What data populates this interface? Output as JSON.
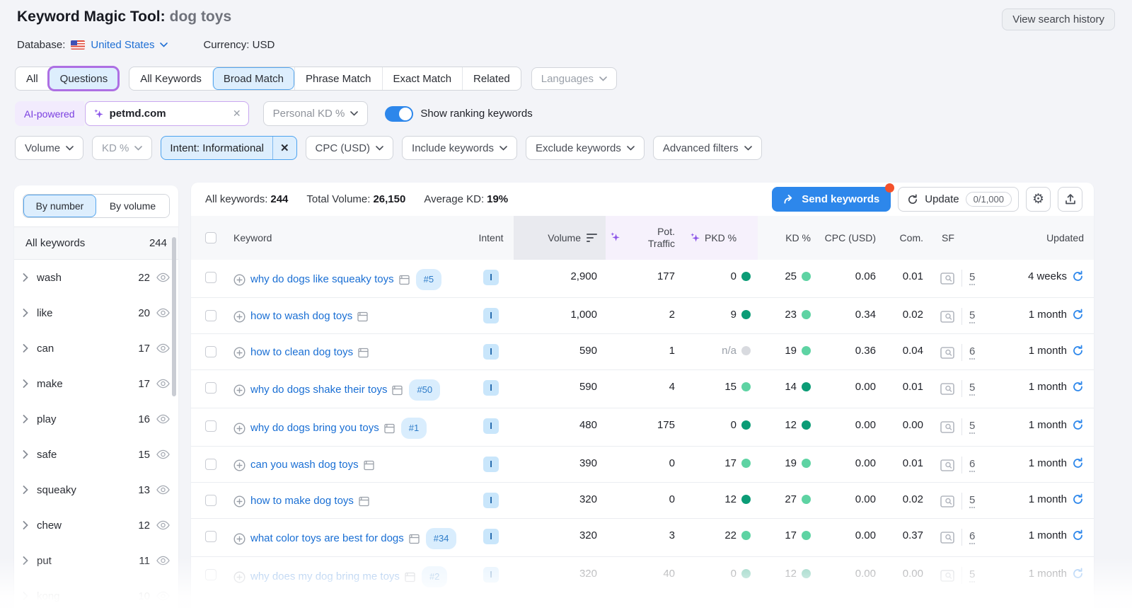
{
  "header": {
    "title": "Keyword Magic Tool:",
    "query": "dog toys",
    "view_search_history": "View search history",
    "database_label": "Database:",
    "database_value": "United States",
    "currency_label": "Currency:",
    "currency_value": "USD"
  },
  "icons": {
    "gear": "⚙",
    "clear": "✕",
    "chip_close": "✕"
  },
  "tabs": {
    "all": "All",
    "questions": "Questions",
    "match_tabs": [
      "All Keywords",
      "Broad Match",
      "Phrase Match",
      "Exact Match",
      "Related"
    ],
    "active_match_tab": "Broad Match",
    "languages": "Languages"
  },
  "search_row": {
    "ai_label": "AI-powered",
    "input_value": "petmd.com",
    "personal_kd_label": "Personal KD %",
    "show_ranking_label": "Show ranking keywords",
    "toggle_on": true
  },
  "filter_row": {
    "volume": "Volume",
    "kd": "KD %",
    "intent_chip": "Intent: Informational",
    "cpc": "CPC (USD)",
    "include": "Include keywords",
    "exclude": "Exclude keywords",
    "advanced": "Advanced filters"
  },
  "sidebar": {
    "by_number": "By number",
    "by_volume": "By volume",
    "all_keywords_label": "All keywords",
    "all_keywords_count": "244",
    "groups": [
      {
        "word": "wash",
        "count": "22"
      },
      {
        "word": "like",
        "count": "20"
      },
      {
        "word": "can",
        "count": "17"
      },
      {
        "word": "make",
        "count": "17"
      },
      {
        "word": "play",
        "count": "16"
      },
      {
        "word": "safe",
        "count": "15"
      },
      {
        "word": "squeaky",
        "count": "13"
      },
      {
        "word": "chew",
        "count": "12"
      },
      {
        "word": "put",
        "count": "11"
      },
      {
        "word": "kong",
        "count": "10",
        "faded": true
      }
    ]
  },
  "toolbar": {
    "stats": [
      {
        "label": "All keywords:",
        "value": "244"
      },
      {
        "label": "Total Volume:",
        "value": "26,150"
      },
      {
        "label": "Average KD:",
        "value": "19%"
      }
    ],
    "send_keywords": "Send keywords",
    "update": "Update",
    "update_quota": "0/1,000"
  },
  "table": {
    "columns": {
      "keyword": "Keyword",
      "intent": "Intent",
      "volume": "Volume",
      "pot_traffic_line1": "Pot.",
      "pot_traffic_line2": "Traffic",
      "pkd": "PKD %",
      "kd": "KD %",
      "cpc": "CPC (USD)",
      "com": "Com.",
      "sf": "SF",
      "updated": "Updated"
    },
    "rows": [
      {
        "keyword": "why do dogs like squeaky toys",
        "rank": "#5",
        "intent": "I",
        "volume": "2,900",
        "pot_traffic": "177",
        "pkd": "0",
        "pkd_level": "dark",
        "kd": "25",
        "kd_level": "light",
        "cpc": "0.06",
        "com": "0.01",
        "sf": "5",
        "updated": "4 weeks",
        "faded": false
      },
      {
        "keyword": "how to wash dog toys",
        "rank": "",
        "intent": "I",
        "volume": "1,000",
        "pot_traffic": "2",
        "pkd": "9",
        "pkd_level": "dark",
        "kd": "23",
        "kd_level": "light",
        "cpc": "0.34",
        "com": "0.02",
        "sf": "5",
        "updated": "1 month",
        "faded": false
      },
      {
        "keyword": "how to clean dog toys",
        "rank": "",
        "intent": "I",
        "volume": "590",
        "pot_traffic": "1",
        "pkd": "n/a",
        "pkd_level": "na",
        "kd": "19",
        "kd_level": "light",
        "cpc": "0.36",
        "com": "0.04",
        "sf": "6",
        "updated": "1 month",
        "faded": false
      },
      {
        "keyword": "why do dogs shake their toys",
        "rank": "#50",
        "intent": "I",
        "volume": "590",
        "pot_traffic": "4",
        "pkd": "15",
        "pkd_level": "light",
        "kd": "14",
        "kd_level": "dark",
        "cpc": "0.00",
        "com": "0.01",
        "sf": "5",
        "updated": "1 month",
        "faded": false
      },
      {
        "keyword": "why do dogs bring you toys",
        "rank": "#1",
        "intent": "I",
        "volume": "480",
        "pot_traffic": "175",
        "pkd": "0",
        "pkd_level": "dark",
        "kd": "12",
        "kd_level": "dark",
        "cpc": "0.00",
        "com": "0.00",
        "sf": "5",
        "updated": "1 month",
        "faded": false
      },
      {
        "keyword": "can you wash dog toys",
        "rank": "",
        "intent": "I",
        "volume": "390",
        "pot_traffic": "0",
        "pkd": "17",
        "pkd_level": "light",
        "kd": "19",
        "kd_level": "light",
        "cpc": "0.00",
        "com": "0.01",
        "sf": "6",
        "updated": "1 month",
        "faded": false
      },
      {
        "keyword": "how to make dog toys",
        "rank": "",
        "intent": "I",
        "volume": "320",
        "pot_traffic": "0",
        "pkd": "12",
        "pkd_level": "dark",
        "kd": "27",
        "kd_level": "light",
        "cpc": "0.00",
        "com": "0.02",
        "sf": "5",
        "updated": "1 month",
        "faded": false
      },
      {
        "keyword": "what color toys are best for dogs",
        "rank": "#34",
        "intent": "I",
        "volume": "320",
        "pot_traffic": "3",
        "pkd": "22",
        "pkd_level": "light",
        "kd": "17",
        "kd_level": "light",
        "cpc": "0.00",
        "com": "0.37",
        "sf": "6",
        "updated": "1 month",
        "faded": false
      },
      {
        "keyword": "why does my dog bring me toys",
        "rank": "#2",
        "intent": "I",
        "volume": "320",
        "pot_traffic": "40",
        "pkd": "0",
        "pkd_level": "dark",
        "kd": "12",
        "kd_level": "dark",
        "cpc": "0.00",
        "com": "0.00",
        "sf": "5",
        "updated": "1 month",
        "faded": true
      }
    ]
  },
  "colors": {
    "accent_blue": "#2d87eb",
    "purple": "#7a3fe0",
    "kd_easy": "#5ed3a3",
    "kd_very_easy": "#0b9c76",
    "na_gray": "#d8dadf",
    "notification_red": "#f4512c"
  }
}
